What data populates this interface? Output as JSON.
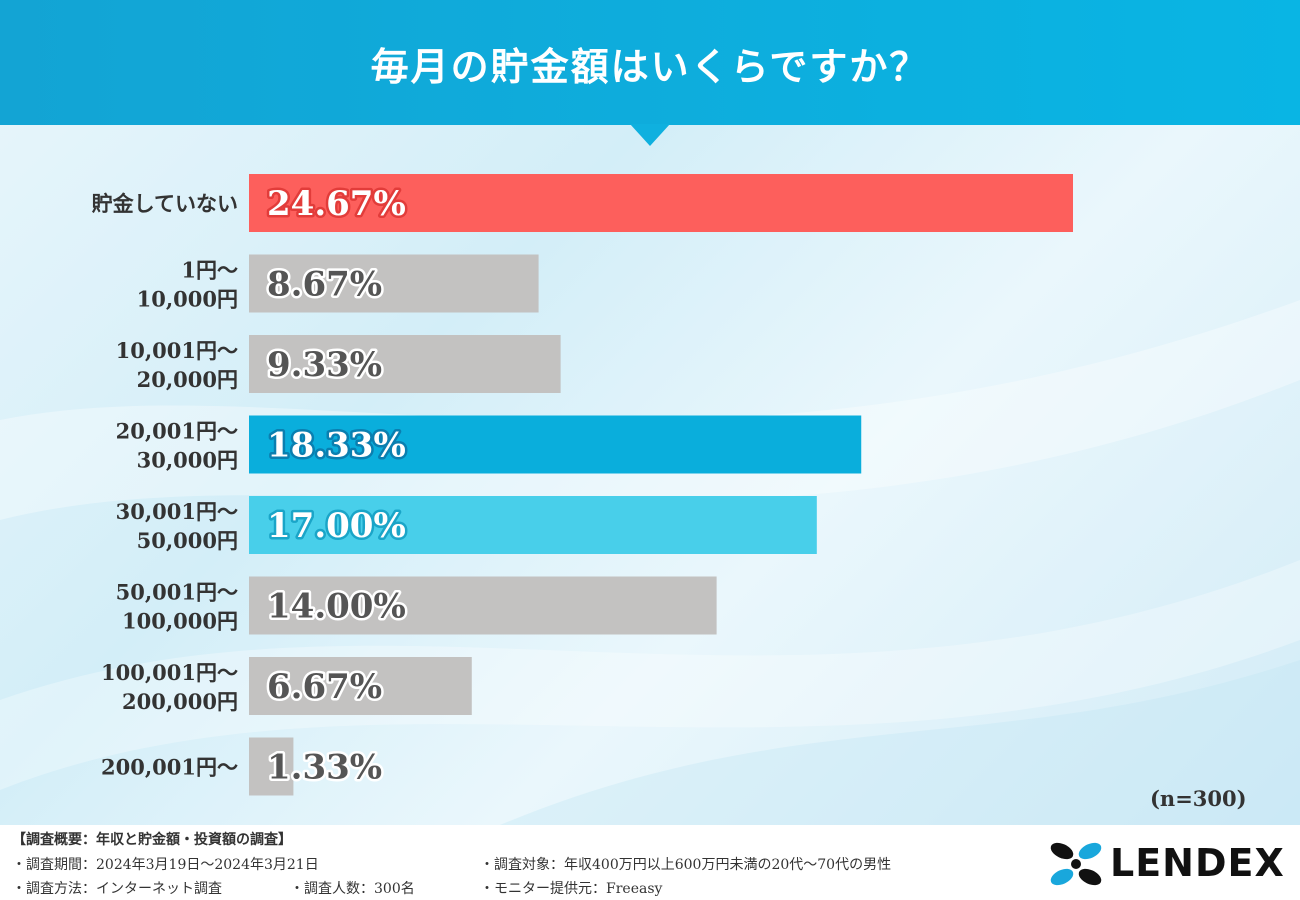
{
  "title": "毎月の貯金額はいくらですか？",
  "sample_size": "(n=300)",
  "colors": {
    "highlight_red": "#fd5f5c",
    "highlight_blue": "#0aaedc",
    "highlight_lightblue": "#48cfea",
    "default_bar": "#c3c2c1",
    "header": "#0fb0df"
  },
  "chart_data": {
    "type": "bar",
    "orientation": "horizontal",
    "categories": [
      [
        "貯金していない"
      ],
      [
        "1円〜",
        "10,000円"
      ],
      [
        "10,001円〜",
        "20,000円"
      ],
      [
        "20,001円〜",
        "30,000円"
      ],
      [
        "30,001円〜",
        "50,000円"
      ],
      [
        "50,001円〜",
        "100,000円"
      ],
      [
        "100,001円〜",
        "200,000円"
      ],
      [
        "200,001円〜"
      ]
    ],
    "values": [
      24.67,
      8.67,
      9.33,
      18.33,
      17.0,
      14.0,
      6.67,
      1.33
    ],
    "value_labels": [
      "24.67%",
      "8.67%",
      "9.33%",
      "18.33%",
      "17.00%",
      "14.00%",
      "6.67%",
      "1.33%"
    ],
    "bar_colors": [
      "#fd5f5c",
      "#c3c2c1",
      "#c3c2c1",
      "#0aaedc",
      "#48cfea",
      "#c3c2c1",
      "#c3c2c1",
      "#c3c2c1"
    ],
    "label_fill": [
      "#ffffff",
      "#555555",
      "#555555",
      "#ffffff",
      "#ffffff",
      "#555555",
      "#555555",
      "#555555"
    ],
    "label_stroke": [
      "#e23c3a",
      "#ffffff",
      "#ffffff",
      "#0a7fb0",
      "#1aa5c8",
      "#ffffff",
      "#ffffff",
      "#ffffff"
    ],
    "unit": "%"
  },
  "footer": {
    "heading": "【調査概要：年収と貯金額・投資額の調査】",
    "period": "・調査期間：2024年3月19日〜2024年3月21日",
    "method": "・調査方法：インターネット調査",
    "count": "・調査人数：300名",
    "target": "・調査対象：年収400万円以上600万円未満の20代〜70代の男性",
    "monitor": "・モニター提供元：Freeasy"
  },
  "logo": {
    "text": "LENDEX",
    "icon": "lendex-logo-icon"
  }
}
